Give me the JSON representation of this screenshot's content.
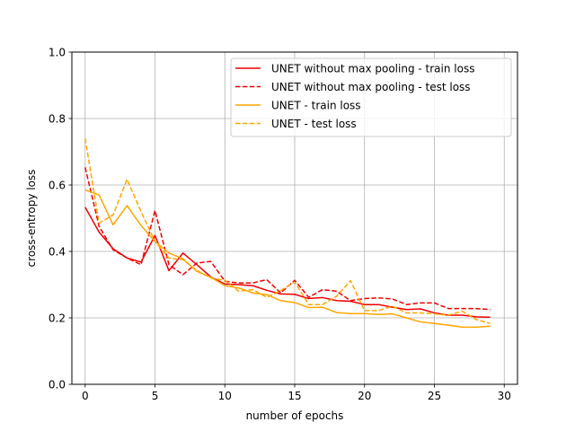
{
  "chart_data": {
    "type": "line",
    "title": "",
    "xlabel": "number of epochs",
    "ylabel": "cross-entropy loss",
    "xlim": [
      -0.95,
      30.95
    ],
    "ylim": [
      0.0,
      1.0
    ],
    "xticks": [
      0,
      5,
      10,
      15,
      20,
      25,
      30
    ],
    "yticks": [
      0.0,
      0.2,
      0.4,
      0.6,
      0.8,
      1.0
    ],
    "xtick_labels": [
      "0",
      "5",
      "10",
      "15",
      "20",
      "25",
      "30"
    ],
    "ytick_labels": [
      "0.0",
      "0.2",
      "0.4",
      "0.6",
      "0.8",
      "1.0"
    ],
    "grid": true,
    "legend_position": "top-right",
    "x": [
      0,
      1,
      2,
      3,
      4,
      5,
      6,
      7,
      8,
      9,
      10,
      11,
      12,
      13,
      14,
      15,
      16,
      17,
      18,
      19,
      20,
      21,
      22,
      23,
      24,
      25,
      26,
      27,
      28,
      29
    ],
    "series": [
      {
        "name": "UNET without max pooling - train loss",
        "color": "#ee0000",
        "dash": "solid",
        "values": [
          0.533,
          0.458,
          0.408,
          0.38,
          0.368,
          0.448,
          0.342,
          0.395,
          0.36,
          0.323,
          0.302,
          0.3,
          0.297,
          0.283,
          0.272,
          0.271,
          0.258,
          0.261,
          0.252,
          0.25,
          0.24,
          0.24,
          0.232,
          0.225,
          0.227,
          0.215,
          0.208,
          0.208,
          0.203,
          0.202
        ]
      },
      {
        "name": "UNET without max pooling - test loss",
        "color": "#ee0000",
        "dash": "dashed",
        "values": [
          0.653,
          0.475,
          0.405,
          0.38,
          0.36,
          0.523,
          0.36,
          0.33,
          0.365,
          0.37,
          0.31,
          0.305,
          0.305,
          0.315,
          0.275,
          0.313,
          0.262,
          0.285,
          0.28,
          0.252,
          0.258,
          0.26,
          0.257,
          0.24,
          0.245,
          0.245,
          0.228,
          0.228,
          0.228,
          0.225
        ]
      },
      {
        "name": "UNET - train loss",
        "color": "#ffa500",
        "dash": "solid",
        "values": [
          0.585,
          0.57,
          0.48,
          0.538,
          0.478,
          0.43,
          0.395,
          0.378,
          0.34,
          0.322,
          0.297,
          0.29,
          0.275,
          0.27,
          0.252,
          0.246,
          0.231,
          0.232,
          0.216,
          0.213,
          0.213,
          0.21,
          0.212,
          0.2,
          0.188,
          0.183,
          0.178,
          0.172,
          0.172,
          0.175
        ]
      },
      {
        "name": "UNET - test loss",
        "color": "#ffa500",
        "dash": "dashed",
        "values": [
          0.74,
          0.485,
          0.51,
          0.617,
          0.52,
          0.43,
          0.38,
          0.375,
          0.343,
          0.32,
          0.313,
          0.28,
          0.285,
          0.262,
          0.282,
          0.308,
          0.24,
          0.24,
          0.265,
          0.312,
          0.222,
          0.222,
          0.235,
          0.215,
          0.215,
          0.212,
          0.208,
          0.22,
          0.195,
          0.183
        ]
      }
    ]
  }
}
